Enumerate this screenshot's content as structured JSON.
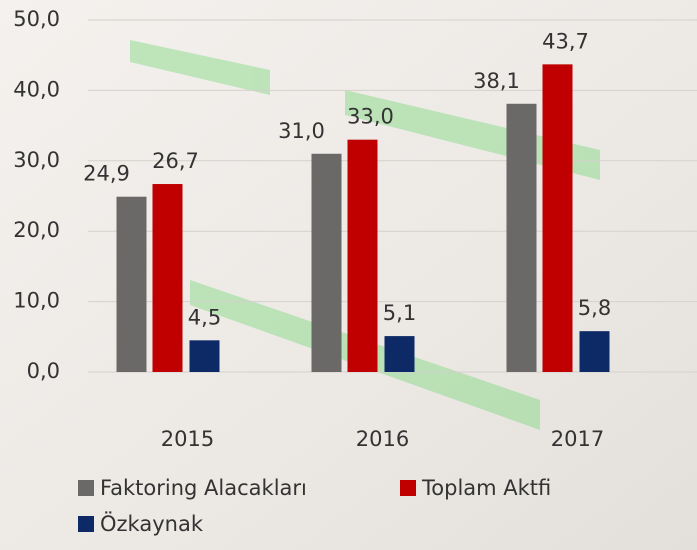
{
  "chart_data": {
    "type": "bar",
    "categories": [
      "2015",
      "2016",
      "2017"
    ],
    "series": [
      {
        "name": "Faktoring Alacakları",
        "color": "#6b6968",
        "values": [
          24.9,
          31.0,
          38.1
        ],
        "value_labels": [
          "24,9",
          "31,0",
          "38,1"
        ]
      },
      {
        "name": "Toplam Aktfi",
        "color": "#c00000",
        "values": [
          26.7,
          33.0,
          43.7
        ],
        "value_labels": [
          "26,7",
          "33,0",
          "43,7"
        ]
      },
      {
        "name": "Özkaynak",
        "color": "#0d2a66",
        "values": [
          4.5,
          5.1,
          5.8
        ],
        "value_labels": [
          "4,5",
          "5,1",
          "5,8"
        ]
      }
    ],
    "ylim": [
      0,
      50
    ],
    "yticks": [
      {
        "value": 0,
        "label": "0,0"
      },
      {
        "value": 10,
        "label": "10,0"
      },
      {
        "value": 20,
        "label": "20,0"
      },
      {
        "value": 30,
        "label": "30,0"
      },
      {
        "value": 40,
        "label": "40,0"
      },
      {
        "value": 50,
        "label": "50,0"
      }
    ],
    "grid": true,
    "legend": "bottom"
  }
}
